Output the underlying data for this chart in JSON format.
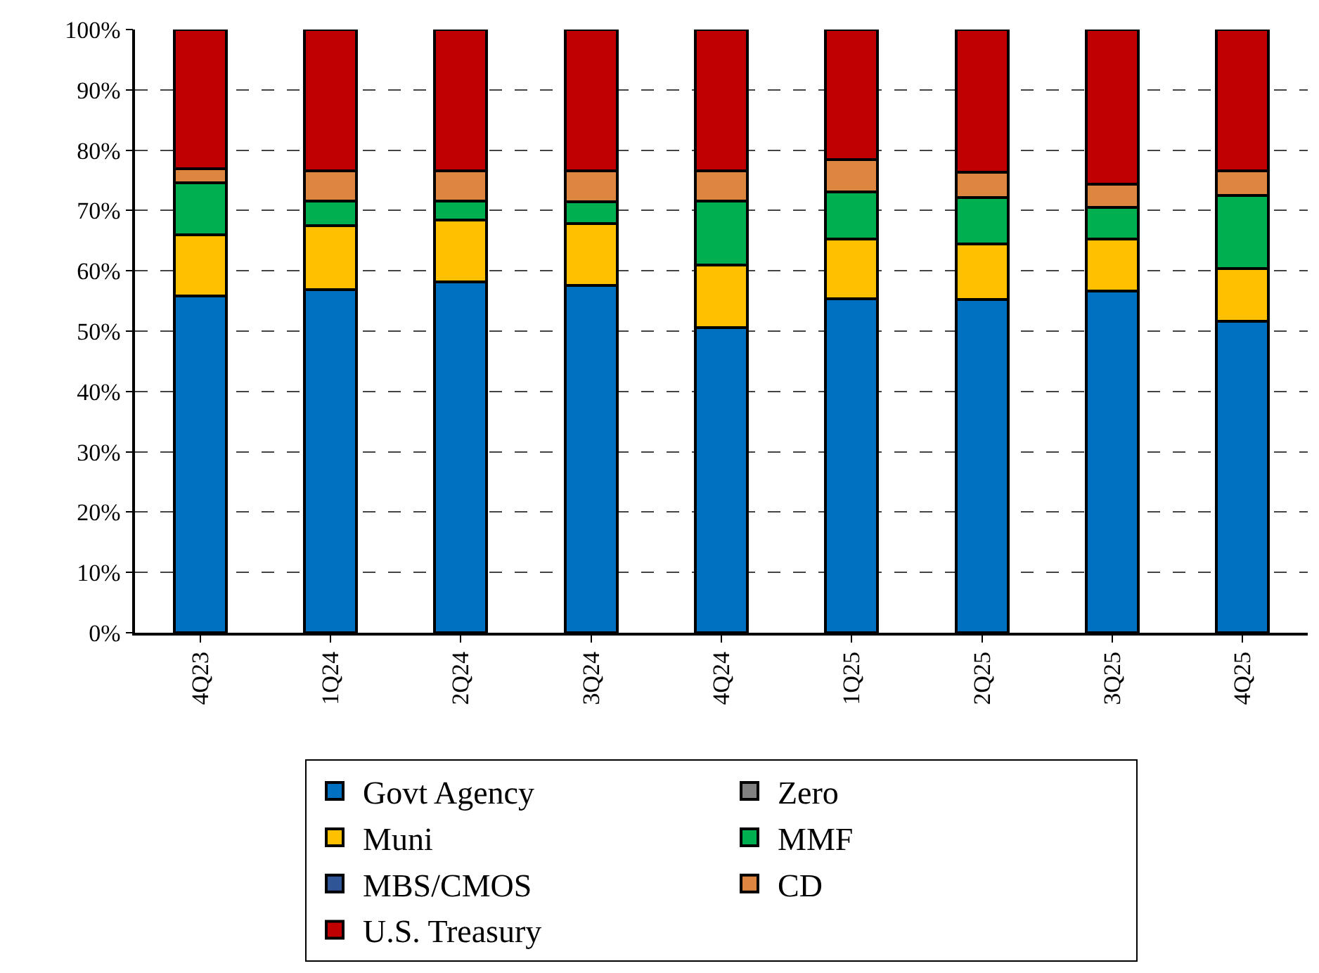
{
  "chart_data": {
    "type": "bar",
    "stacked": true,
    "categories": [
      "4Q23",
      "1Q24",
      "2Q24",
      "3Q24",
      "4Q24",
      "1Q25",
      "2Q25",
      "3Q25",
      "4Q25"
    ],
    "series": [
      {
        "name": "Govt Agency",
        "color": "#0070c0",
        "values": [
          55.8,
          56.9,
          58.2,
          57.6,
          50.6,
          55.4,
          55.2,
          56.6,
          51.6
        ]
      },
      {
        "name": "Zero",
        "color": "#808080",
        "values": [
          0,
          0,
          0,
          0,
          0,
          0,
          0,
          0,
          0
        ]
      },
      {
        "name": "Muni",
        "color": "#ffc000",
        "values": [
          10.2,
          10.6,
          10.2,
          10.2,
          10.3,
          9.9,
          9.3,
          8.7,
          8.8
        ]
      },
      {
        "name": "MMF",
        "color": "#00b050",
        "values": [
          8.6,
          4.1,
          3.2,
          3.6,
          10.7,
          7.8,
          7.7,
          5.2,
          12.1
        ]
      },
      {
        "name": "MBS/CMOS",
        "color": "#2f5597",
        "values": [
          0,
          0,
          0,
          0,
          0,
          0,
          0,
          0,
          0
        ]
      },
      {
        "name": "CD",
        "color": "#dd8640",
        "values": [
          2.3,
          5.0,
          5.0,
          5.2,
          5.0,
          5.3,
          4.1,
          3.9,
          4.1
        ]
      },
      {
        "name": "U.S. Treasury",
        "color": "#c00000",
        "values": [
          23.1,
          23.4,
          23.4,
          23.4,
          23.4,
          21.6,
          23.7,
          25.6,
          23.4
        ]
      }
    ],
    "ylim": [
      0,
      100
    ],
    "yticks": [
      {
        "value": 0,
        "label": "0%"
      },
      {
        "value": 10,
        "label": "10%"
      },
      {
        "value": 20,
        "label": "20%"
      },
      {
        "value": 30,
        "label": "30%"
      },
      {
        "value": 40,
        "label": "40%"
      },
      {
        "value": 50,
        "label": "50%"
      },
      {
        "value": 60,
        "label": "60%"
      },
      {
        "value": 70,
        "label": "70%"
      },
      {
        "value": 80,
        "label": "80%"
      },
      {
        "value": 90,
        "label": "90%"
      },
      {
        "value": 100,
        "label": "100%"
      }
    ],
    "grid": "y",
    "legend": "bottom"
  }
}
